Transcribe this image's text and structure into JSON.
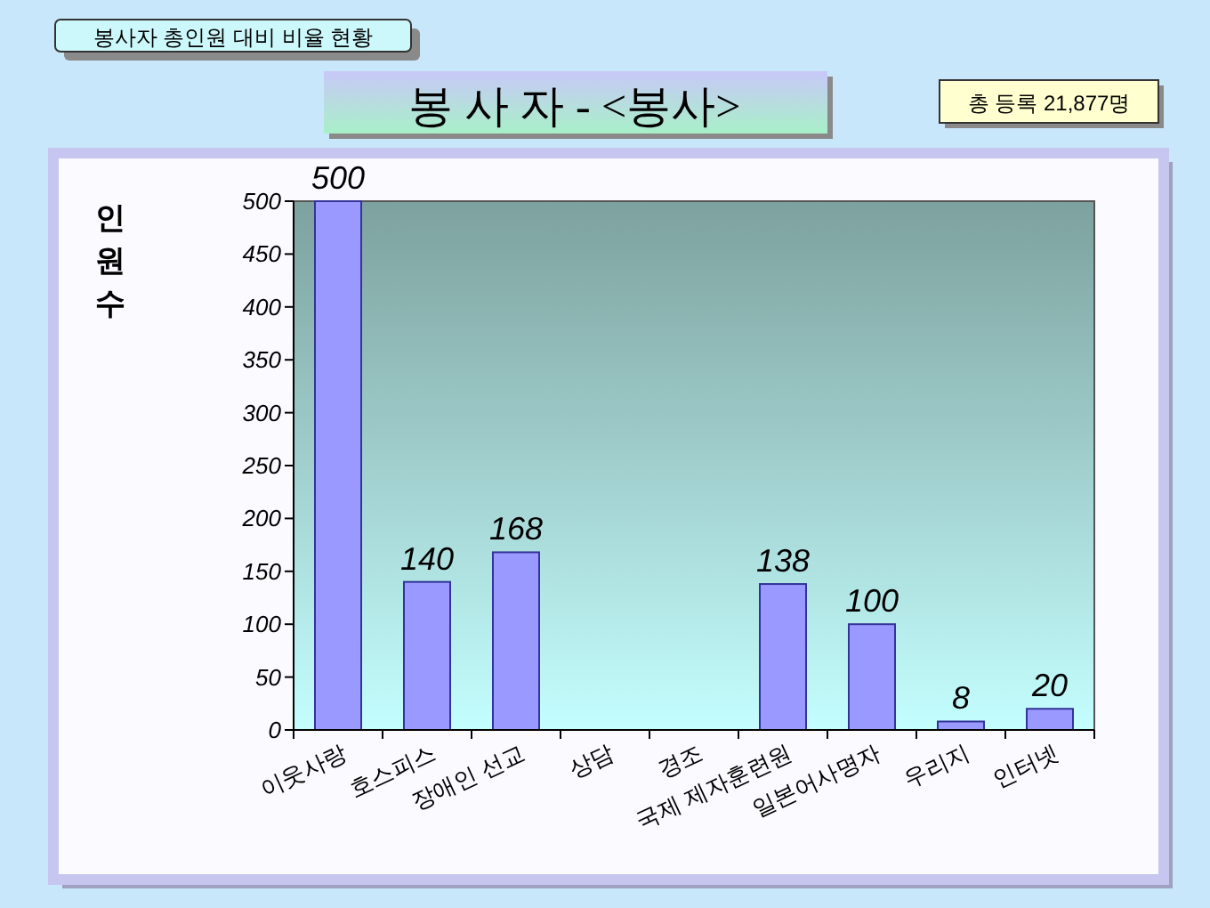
{
  "chart_data": {
    "type": "bar",
    "title": "봉 사 자 - <봉사>",
    "subtitle": "봉사자 총인원 대비 비율 현황",
    "ylabel": "인원수",
    "annotations": [
      "총 등록 21,877명"
    ],
    "categories": [
      "이웃사랑",
      "호스피스",
      "장애인 선교",
      "상담",
      "경조",
      "국제 제자훈련원",
      "일본어사명자",
      "우리지",
      "인터넷"
    ],
    "values": [
      500,
      140,
      168,
      0,
      0,
      138,
      100,
      8,
      20
    ],
    "value_labels": [
      "500",
      "140",
      "168",
      null,
      null,
      "138",
      "100",
      "8",
      "20"
    ],
    "color": "#9999ff",
    "ylim": [
      0,
      500
    ],
    "yticks": [
      0,
      50,
      100,
      150,
      200,
      250,
      300,
      350,
      400,
      450,
      500
    ]
  }
}
